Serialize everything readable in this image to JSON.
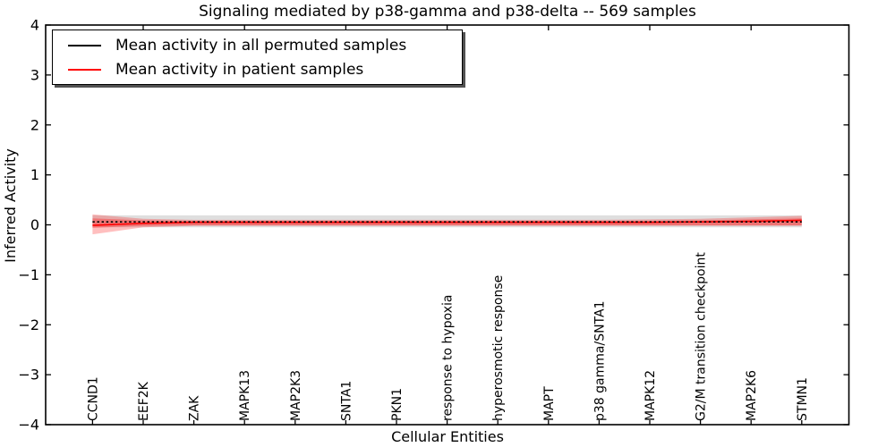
{
  "title": "Signaling mediated by p38-gamma and p38-delta -- 569 samples",
  "axes": {
    "xlabel": "Cellular Entities",
    "ylabel": "Inferred Activity",
    "ytick_labels": [
      "4",
      "3",
      "2",
      "1",
      "0",
      "−1",
      "−2",
      "−3",
      "−4"
    ],
    "ytick_values": [
      4,
      3,
      2,
      1,
      0,
      -1,
      -2,
      -3,
      -4
    ]
  },
  "legend": {
    "items": [
      {
        "label": "Mean activity in all permuted samples",
        "color": "#000000"
      },
      {
        "label": "Mean activity in patient samples",
        "color": "#ff0000"
      }
    ]
  },
  "chart_data": {
    "type": "line",
    "title": "Signaling mediated by p38-gamma and p38-delta -- 569 samples",
    "xlabel": "Cellular Entities",
    "ylabel": "Inferred Activity",
    "ylim": [
      -4,
      4
    ],
    "grid": false,
    "legend_position": "upper left",
    "categories": [
      "CCND1",
      "EEF2K",
      "ZAK",
      "MAPK13",
      "MAP2K3",
      "SNTA1",
      "PKN1",
      "response to hypoxia",
      "hyperosmotic response",
      "MAPT",
      "p38 gamma/SNTA1",
      "MAPK12",
      "G2/M transition checkpoint",
      "MAP2K6",
      "STMN1"
    ],
    "x_top_tick_indices": [
      1,
      3,
      5,
      7,
      9,
      11,
      13
    ],
    "series": [
      {
        "name": "Mean activity in all permuted samples",
        "color": "#000000",
        "style": "dashed",
        "values": [
          0.06,
          0.06,
          0.06,
          0.06,
          0.06,
          0.06,
          0.06,
          0.06,
          0.06,
          0.06,
          0.06,
          0.06,
          0.06,
          0.06,
          0.06
        ]
      },
      {
        "name": "Mean activity in patient samples",
        "color": "#ff0000",
        "style": "solid",
        "values": [
          -0.01,
          0.03,
          0.05,
          0.05,
          0.05,
          0.05,
          0.05,
          0.05,
          0.05,
          0.05,
          0.05,
          0.05,
          0.06,
          0.07,
          0.09
        ]
      }
    ],
    "bands": [
      {
        "name": "permuted-samples-range",
        "color": "#505050",
        "opacity": 0.18,
        "upper": [
          0.19,
          0.19,
          0.19,
          0.19,
          0.19,
          0.19,
          0.19,
          0.19,
          0.19,
          0.19,
          0.19,
          0.19,
          0.19,
          0.19,
          0.19
        ],
        "lower": [
          -0.05,
          -0.05,
          -0.05,
          -0.05,
          -0.05,
          -0.05,
          -0.05,
          -0.05,
          -0.05,
          -0.05,
          -0.05,
          -0.05,
          -0.05,
          -0.05,
          -0.05
        ]
      },
      {
        "name": "patient-samples-range-outer",
        "color": "#ff0000",
        "opacity": 0.25,
        "upper": [
          0.21,
          0.12,
          0.1,
          0.1,
          0.1,
          0.1,
          0.1,
          0.1,
          0.1,
          0.1,
          0.1,
          0.11,
          0.12,
          0.15,
          0.18
        ],
        "lower": [
          -0.19,
          -0.05,
          -0.02,
          -0.02,
          -0.02,
          -0.02,
          -0.02,
          -0.02,
          -0.02,
          -0.02,
          -0.02,
          -0.02,
          -0.02,
          -0.02,
          -0.02
        ]
      },
      {
        "name": "patient-samples-range-inner",
        "color": "#ff0000",
        "opacity": 0.3,
        "upper": [
          0.13,
          0.09,
          0.08,
          0.08,
          0.08,
          0.08,
          0.08,
          0.08,
          0.08,
          0.08,
          0.08,
          0.08,
          0.09,
          0.11,
          0.13
        ],
        "lower": [
          -0.06,
          -0.02,
          -0.01,
          -0.01,
          -0.01,
          -0.01,
          -0.01,
          -0.01,
          -0.01,
          -0.01,
          -0.01,
          -0.01,
          -0.01,
          -0.01,
          -0.01
        ]
      }
    ]
  }
}
